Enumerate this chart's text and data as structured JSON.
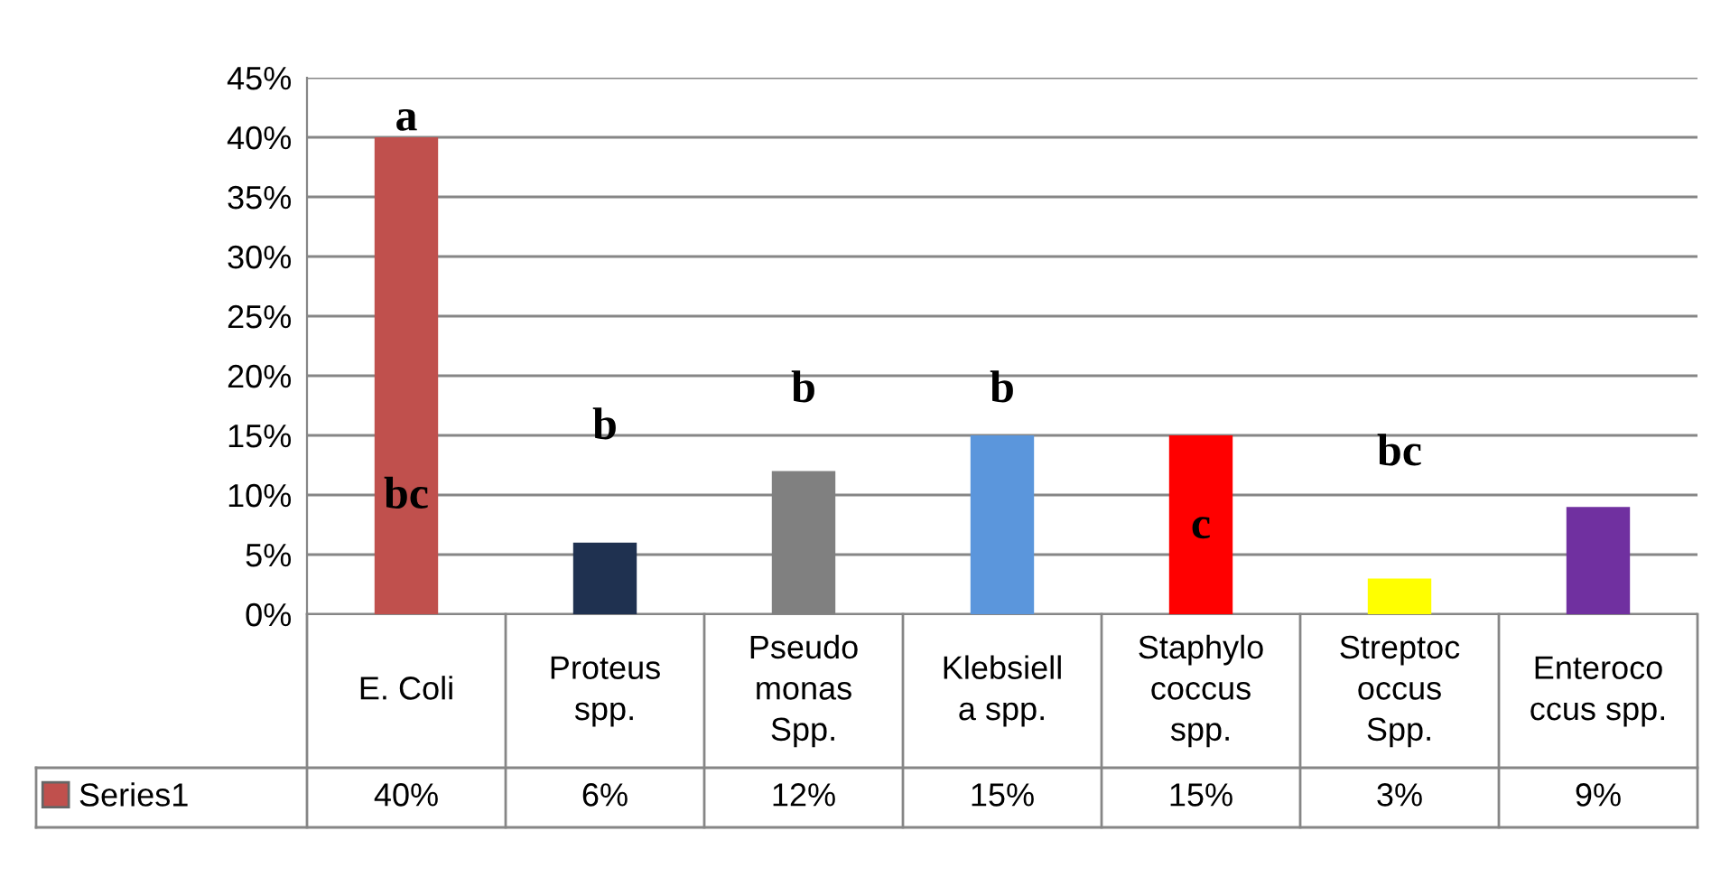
{
  "chart_data": {
    "type": "bar",
    "categories": [
      "E. Coli",
      "Proteus\nspp.",
      "Pseudo\nmonas\nSpp.",
      "Klebsiell\na spp.",
      "Staphylo\ncoccus\nspp.",
      "Streptoc\noccus\nSpp.",
      "Enteroco\nccus spp."
    ],
    "series": [
      {
        "name": "Series1",
        "color": "#c0504d",
        "colors": [
          "#c0504d",
          "#1f3150",
          "#808080",
          "#5b96dc",
          "#ff0000",
          "#ffff00",
          "#7030a0"
        ],
        "values": [
          40,
          6,
          12,
          15,
          15,
          3,
          9
        ],
        "value_labels": [
          "40%",
          "6%",
          "12%",
          "15%",
          "15%",
          "3%",
          "9%"
        ]
      }
    ],
    "ylim": [
      0,
      45
    ],
    "yticks": [
      {
        "value": 0,
        "label": "0%"
      },
      {
        "value": 5,
        "label": "5%"
      },
      {
        "value": 10,
        "label": "10%"
      },
      {
        "value": 15,
        "label": "15%"
      },
      {
        "value": 20,
        "label": "20%"
      },
      {
        "value": 25,
        "label": "25%"
      },
      {
        "value": 30,
        "label": "30%"
      },
      {
        "value": 35,
        "label": "35%"
      },
      {
        "value": 40,
        "label": "40%"
      },
      {
        "value": 45,
        "label": "45%"
      }
    ],
    "grid": "y",
    "legend": "bottom",
    "annotations": [
      "a",
      "bc",
      "b",
      "b",
      "b",
      "c",
      "bc"
    ]
  }
}
